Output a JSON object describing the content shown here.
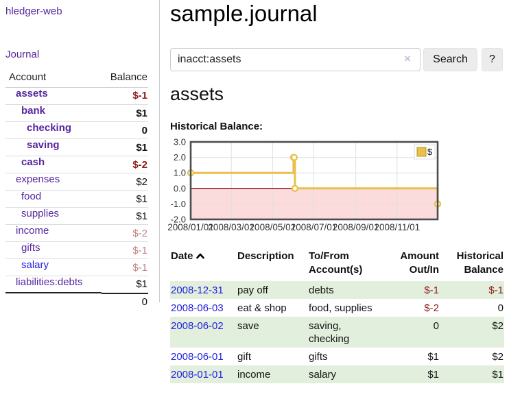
{
  "app": {
    "brand": "hledger-web"
  },
  "nav": {
    "journal": "Journal"
  },
  "sidebar": {
    "account_header": "Account",
    "balance_header": "Balance",
    "accounts": [
      {
        "name": "assets",
        "balance": "$-1",
        "depth": 0,
        "bold": true,
        "tone": "neg-strong",
        "blue": false
      },
      {
        "name": "bank",
        "balance": "$1",
        "depth": 1,
        "bold": true,
        "tone": "",
        "blue": false
      },
      {
        "name": "checking",
        "balance": "0",
        "depth": 2,
        "bold": true,
        "tone": "",
        "blue": false
      },
      {
        "name": "saving",
        "balance": "$1",
        "depth": 2,
        "bold": true,
        "tone": "",
        "blue": false
      },
      {
        "name": "cash",
        "balance": "$-2",
        "depth": 1,
        "bold": true,
        "tone": "neg-strong",
        "blue": false
      },
      {
        "name": "expenses",
        "balance": "$2",
        "depth": 0,
        "bold": false,
        "tone": "",
        "blue": false
      },
      {
        "name": "food",
        "balance": "$1",
        "depth": 1,
        "bold": false,
        "tone": "",
        "blue": false
      },
      {
        "name": "supplies",
        "balance": "$1",
        "depth": 1,
        "bold": false,
        "tone": "",
        "blue": false
      },
      {
        "name": "income",
        "balance": "$-2",
        "depth": 0,
        "bold": false,
        "tone": "neg-muted",
        "blue": false
      },
      {
        "name": "gifts",
        "balance": "$-1",
        "depth": 1,
        "bold": false,
        "tone": "neg-muted",
        "blue": false
      },
      {
        "name": "salary",
        "balance": "$-1",
        "depth": 1,
        "bold": false,
        "tone": "neg-muted",
        "blue": true
      },
      {
        "name": "liabilities:debts",
        "balance": "$1",
        "depth": 0,
        "bold": false,
        "tone": "",
        "blue": false
      }
    ],
    "total": "0"
  },
  "main": {
    "title": "sample.journal",
    "search": {
      "value": "inacct:assets",
      "clear": "×",
      "button": "Search",
      "help": "?"
    },
    "account_heading": "assets",
    "chart_title": "Historical Balance:"
  },
  "chart_data": {
    "type": "line",
    "step": true,
    "title": "Historical Balance",
    "legend": "$",
    "series_color": "#e9c04a",
    "marker_fill": "#ffffff",
    "negative_fill": "#fbdbdb",
    "zero_line_color": "#8b0000",
    "grid_color": "#e0e0e0",
    "border_color": "#4d4d4d",
    "ylim": [
      -2,
      3
    ],
    "yticks": [
      3,
      2,
      1,
      0,
      -1,
      -2
    ],
    "x_range": [
      "2008-01-01",
      "2008-12-31"
    ],
    "xticks": [
      {
        "date": "2008-01-01",
        "label": "2008/01/01"
      },
      {
        "date": "2008-03-01",
        "label": "2008/03/01"
      },
      {
        "date": "2008-05-01",
        "label": "2008/05/01"
      },
      {
        "date": "2008-07-01",
        "label": "2008/07/01"
      },
      {
        "date": "2008-09-01",
        "label": "2008/09/01"
      },
      {
        "date": "2008-11-01",
        "label": "2008/11/01"
      }
    ],
    "points": [
      {
        "date": "2008-01-01",
        "value": 1
      },
      {
        "date": "2008-06-01",
        "value": 2
      },
      {
        "date": "2008-06-02",
        "value": 2
      },
      {
        "date": "2008-06-03",
        "value": 0
      },
      {
        "date": "2008-12-31",
        "value": -1
      }
    ]
  },
  "register": {
    "headers": {
      "date": "Date",
      "description": "Description",
      "accounts": "To/From\nAccount(s)",
      "amount": "Amount\nOut/In",
      "balance": "Historical\nBalance"
    },
    "rows": [
      {
        "date": "2008-12-31",
        "description": "pay off",
        "accounts": "debts",
        "amount": "$-1",
        "balance": "$-1",
        "amount_neg": true,
        "balance_neg": true
      },
      {
        "date": "2008-06-03",
        "description": "eat & shop",
        "accounts": "food, supplies",
        "amount": "$-2",
        "balance": "0",
        "amount_neg": true,
        "balance_neg": false
      },
      {
        "date": "2008-06-02",
        "description": "save",
        "accounts": "saving,\nchecking",
        "amount": "0",
        "balance": "$2",
        "amount_neg": false,
        "balance_neg": false
      },
      {
        "date": "2008-06-01",
        "description": "gift",
        "accounts": "gifts",
        "amount": "$1",
        "balance": "$2",
        "amount_neg": false,
        "balance_neg": false
      },
      {
        "date": "2008-01-01",
        "description": "income",
        "accounts": "salary",
        "amount": "$1",
        "balance": "$1",
        "amount_neg": false,
        "balance_neg": false
      }
    ]
  }
}
